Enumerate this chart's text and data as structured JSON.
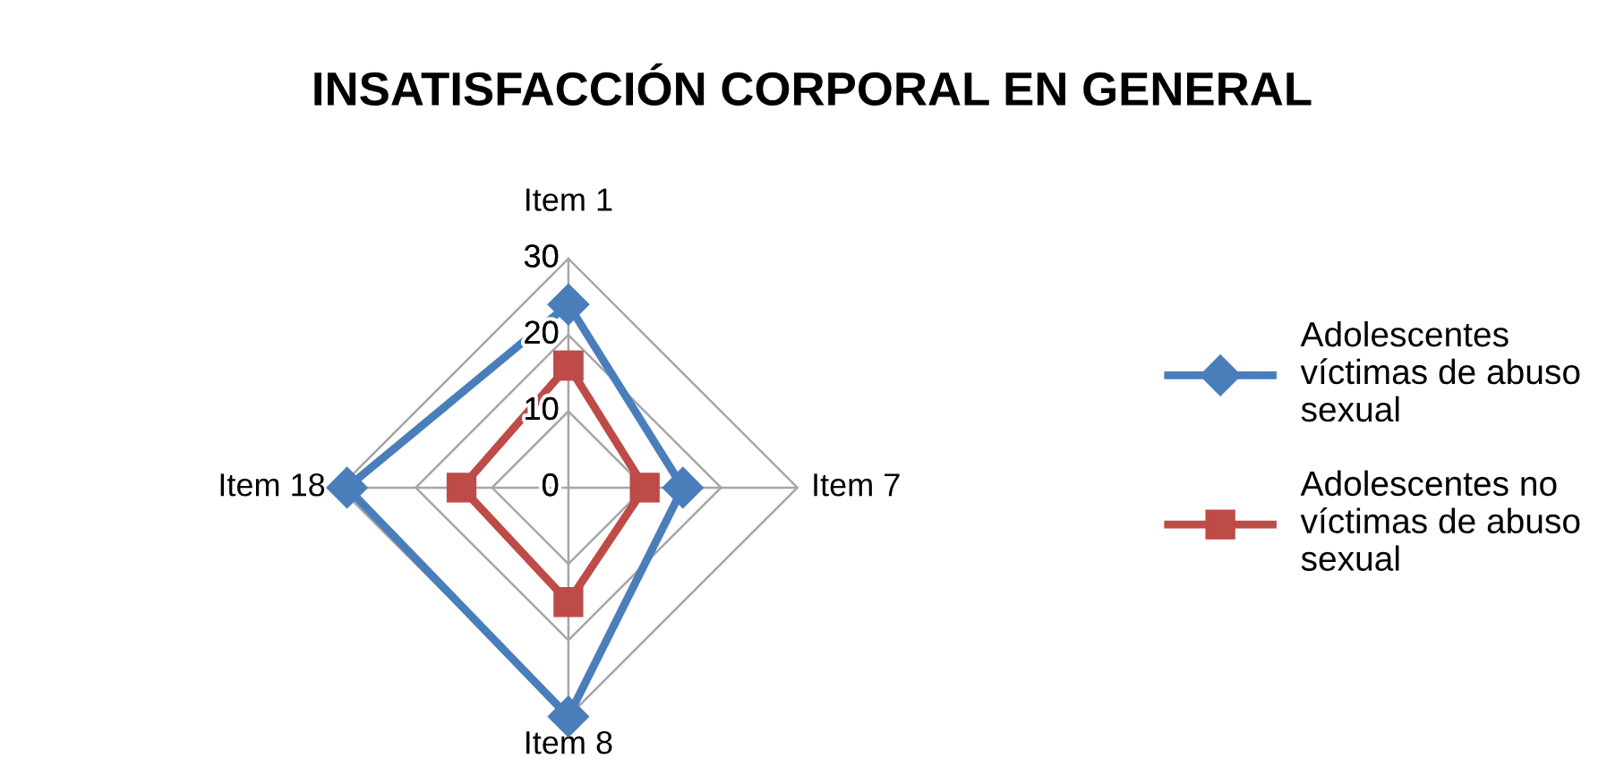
{
  "chart_data": {
    "type": "radar",
    "title": "INSATISFACCIÓN CORPORAL EN GENERAL",
    "categories": [
      "Item 1",
      "Item 7",
      "Item 8",
      "Item 18"
    ],
    "series": [
      {
        "name": "Adolescentes víctimas de abuso sexual",
        "color": "#4a7ebb",
        "marker": "diamond",
        "values": [
          24,
          15,
          30,
          29
        ]
      },
      {
        "name": "Adolescentes no víctimas de abuso sexual",
        "color": "#be4b48",
        "marker": "square",
        "values": [
          16,
          10,
          15,
          14
        ]
      }
    ],
    "ylim": [
      0,
      30
    ],
    "yticks": [
      0,
      10,
      20,
      30
    ],
    "grid": true,
    "legend": "right"
  }
}
